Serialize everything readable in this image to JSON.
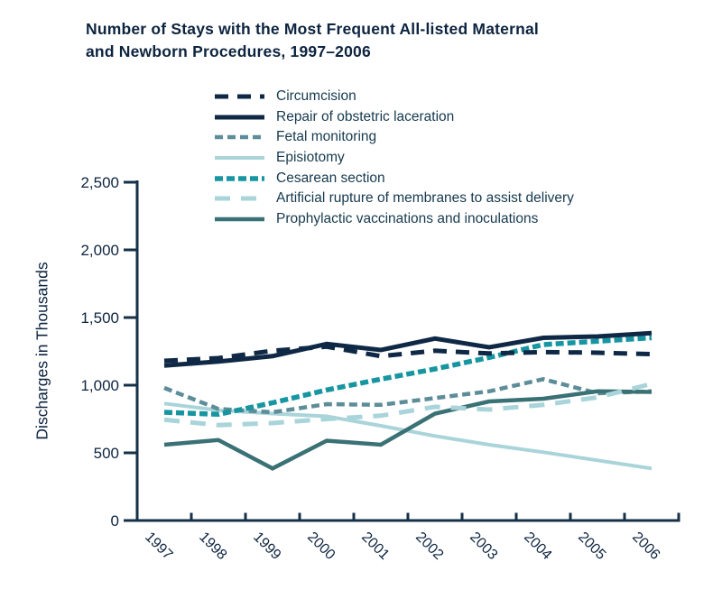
{
  "title": {
    "line1": "Number of Stays with the Most Frequent All-listed Maternal",
    "line2": "and Newborn Procedures, 1997–2006",
    "full": "Number of Stays with the Most Frequent All-listed Maternal and Newborn Procedures, 1997–2006"
  },
  "colors": {
    "navy": "#0e2845",
    "teal": "#1795a0",
    "gray_teal": "#5d8d99",
    "light_teal": "#a9d4d9",
    "dark_teal": "#3a7175",
    "axis": "#16304a",
    "text": "#0d2440"
  },
  "y_axis": {
    "title": "Discharges in Thousands",
    "tick_labels": [
      "0",
      "500",
      "1,000",
      "1,500",
      "2,000",
      "2,500"
    ],
    "tick_values": [
      0,
      500,
      1000,
      1500,
      2000,
      2500
    ]
  },
  "x_axis": {
    "tick_labels": [
      "1997",
      "1998",
      "1999",
      "2000",
      "2001",
      "2002",
      "2003",
      "2004",
      "2005",
      "2006"
    ]
  },
  "chart_data": {
    "type": "line",
    "title": "Number of Stays with the Most Frequent All-listed Maternal and Newborn Procedures, 1997–2006",
    "xlabel": "",
    "ylabel": "Discharges in Thousands",
    "ylim": [
      0,
      2500
    ],
    "grid": false,
    "legend_position": "top",
    "x": [
      1997,
      1998,
      1999,
      2000,
      2001,
      2002,
      2003,
      2004,
      2005,
      2006
    ],
    "series": [
      {
        "id": "circumcision",
        "name": "Circumcision",
        "color": "#0e2845",
        "dash": "15 10",
        "width": 5,
        "values": [
          1180,
          1200,
          1255,
          1285,
          1215,
          1255,
          1235,
          1245,
          1240,
          1230
        ]
      },
      {
        "id": "repair-of-obstetric-laceration",
        "name": "Repair of obstetric laceration",
        "color": "#0e2845",
        "dash": null,
        "width": 5,
        "values": [
          1145,
          1175,
          1215,
          1305,
          1260,
          1345,
          1280,
          1350,
          1360,
          1385
        ]
      },
      {
        "id": "fetal-monitoring",
        "name": "Fetal monitoring",
        "color": "#5d8d99",
        "dash": "9 5",
        "width": 4.5,
        "values": [
          980,
          825,
          800,
          860,
          855,
          905,
          955,
          1045,
          940,
          955
        ]
      },
      {
        "id": "episiotomy",
        "name": "Episiotomy",
        "color": "#a9d4d9",
        "dash": null,
        "width": 4,
        "values": [
          865,
          815,
          790,
          770,
          700,
          625,
          560,
          505,
          445,
          385
        ]
      },
      {
        "id": "cesarean-section",
        "name": "Cesarean section",
        "color": "#1795a0",
        "dash": "9 4",
        "width": 5.5,
        "values": [
          800,
          785,
          870,
          965,
          1045,
          1120,
          1205,
          1300,
          1325,
          1350
        ]
      },
      {
        "id": "artificial-rupture-of-membranes",
        "name": "Artificial rupture of membranes to assist delivery",
        "color": "#a9d4d9",
        "dash": "17 12",
        "width": 5,
        "values": [
          745,
          705,
          720,
          750,
          775,
          840,
          820,
          855,
          910,
          1010
        ]
      },
      {
        "id": "prophylactic-vaccinations",
        "name": "Prophylactic vaccinations and inoculations",
        "color": "#3a7175",
        "dash": null,
        "width": 4.5,
        "values": [
          560,
          595,
          385,
          590,
          560,
          790,
          880,
          900,
          955,
          950
        ]
      }
    ]
  }
}
